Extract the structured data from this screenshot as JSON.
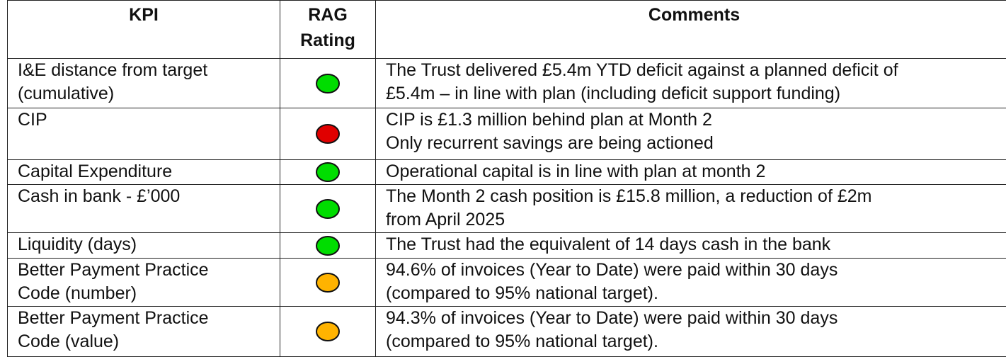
{
  "table": {
    "header": {
      "kpi": [
        "KPI"
      ],
      "rag": [
        "RAG",
        "Rating"
      ],
      "comments": [
        "Comments"
      ]
    },
    "rows": [
      {
        "kpi": [
          "I&E distance from target",
          "(cumulative)"
        ],
        "rag": "#00dd00",
        "comments": [
          "The Trust delivered £5.4m YTD deficit against a planned deficit of",
          "£5.4m – in line with plan (including deficit support funding)"
        ]
      },
      {
        "kpi": [
          "CIP"
        ],
        "rag": "#e00000",
        "comments": [
          "CIP is £1.3 million behind plan at Month 2",
          "Only recurrent savings are being actioned"
        ]
      },
      {
        "kpi": [
          "Capital Expenditure"
        ],
        "rag": "#00dd00",
        "comments": [
          "Operational capital is in line with plan at month 2"
        ]
      },
      {
        "kpi": [
          "Cash in bank - £’000"
        ],
        "rag": "#00dd00",
        "comments": [
          "The Month 2 cash position is £15.8 million, a reduction of £2m",
          "from April 2025"
        ]
      },
      {
        "kpi": [
          "Liquidity (days)"
        ],
        "rag": "#00dd00",
        "comments": [
          "The Trust had the equivalent of 14 days cash in the bank"
        ]
      },
      {
        "kpi": [
          "Better Payment Practice",
          "Code (number)"
        ],
        "rag": "#ffb300",
        "comments": [
          "94.6% of invoices (Year to Date) were paid within 30 days",
          "(compared to 95% national target)."
        ]
      },
      {
        "kpi": [
          "Better Payment Practice",
          "Code (value)"
        ],
        "rag": "#ffb300",
        "comments": [
          "94.3% of invoices (Year to Date) were paid within 30 days",
          "(compared to 95% national target)."
        ]
      }
    ]
  }
}
